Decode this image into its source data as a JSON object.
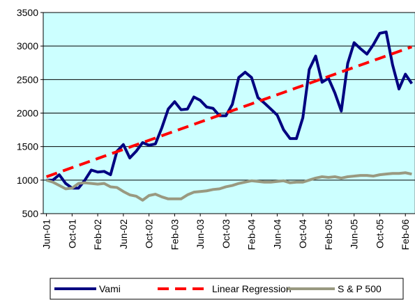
{
  "chart_data": {
    "type": "line",
    "categories": [
      "Jun-01",
      null,
      null,
      null,
      "Oct-01",
      null,
      null,
      null,
      "Feb-02",
      null,
      null,
      null,
      "Jun-02",
      null,
      null,
      null,
      "Oct-02",
      null,
      null,
      null,
      "Feb-03",
      null,
      null,
      null,
      "Jun-03",
      null,
      null,
      null,
      "Oct-03",
      null,
      null,
      null,
      "Feb-04",
      null,
      null,
      null,
      "Jun-04",
      null,
      null,
      null,
      "Oct-04",
      null,
      null,
      null,
      "Feb-05",
      null,
      null,
      null,
      "Jun-05",
      null,
      null,
      null,
      "Oct-05",
      null,
      null,
      null,
      "Feb-06",
      null
    ],
    "series": [
      {
        "name": "Vami",
        "color": "#000080",
        "values": [
          1000,
          1000,
          1080,
          950,
          880,
          880,
          1000,
          1150,
          1120,
          1130,
          1080,
          1430,
          1530,
          1330,
          1430,
          1560,
          1520,
          1540,
          1780,
          2060,
          2170,
          2050,
          2060,
          2240,
          2190,
          2090,
          2070,
          1960,
          1960,
          2130,
          2530,
          2610,
          2530,
          2230,
          2150,
          2060,
          1970,
          1750,
          1620,
          1620,
          1930,
          2650,
          2850,
          2460,
          2520,
          2300,
          2030,
          2740,
          3050,
          2960,
          2880,
          3020,
          3190,
          3210,
          2720,
          2360,
          2580,
          2440
        ]
      },
      {
        "name": "Linear Regression",
        "color": "#ff0000",
        "dashed": true,
        "values": [
          1050,
          1084,
          1118,
          1152,
          1186,
          1220,
          1254,
          1288,
          1322,
          1356,
          1390,
          1424,
          1458,
          1492,
          1526,
          1560,
          1594,
          1628,
          1662,
          1696,
          1730,
          1764,
          1798,
          1832,
          1866,
          1900,
          1934,
          1968,
          2002,
          2036,
          2070,
          2104,
          2138,
          2172,
          2206,
          2240,
          2274,
          2308,
          2342,
          2376,
          2410,
          2444,
          2478,
          2512,
          2546,
          2580,
          2614,
          2648,
          2682,
          2716,
          2750,
          2784,
          2818,
          2852,
          2886,
          2920,
          2954,
          2988
        ]
      },
      {
        "name": "S & P 500",
        "color": "#999980",
        "values": [
          1000,
          970,
          920,
          870,
          880,
          950,
          960,
          950,
          940,
          950,
          900,
          890,
          830,
          780,
          760,
          700,
          770,
          790,
          750,
          720,
          720,
          720,
          780,
          820,
          830,
          840,
          860,
          870,
          900,
          920,
          950,
          970,
          990,
          980,
          970,
          970,
          980,
          990,
          960,
          970,
          970,
          1000,
          1030,
          1050,
          1040,
          1050,
          1030,
          1050,
          1060,
          1070,
          1070,
          1060,
          1080,
          1090,
          1100,
          1100,
          1110,
          1090
        ]
      }
    ],
    "ylim": [
      500,
      3500
    ],
    "yticks": [
      500,
      1000,
      1500,
      2000,
      2500,
      3000,
      3500
    ],
    "grid": true,
    "plot_background": "#ccffff",
    "legend": "bottom"
  }
}
